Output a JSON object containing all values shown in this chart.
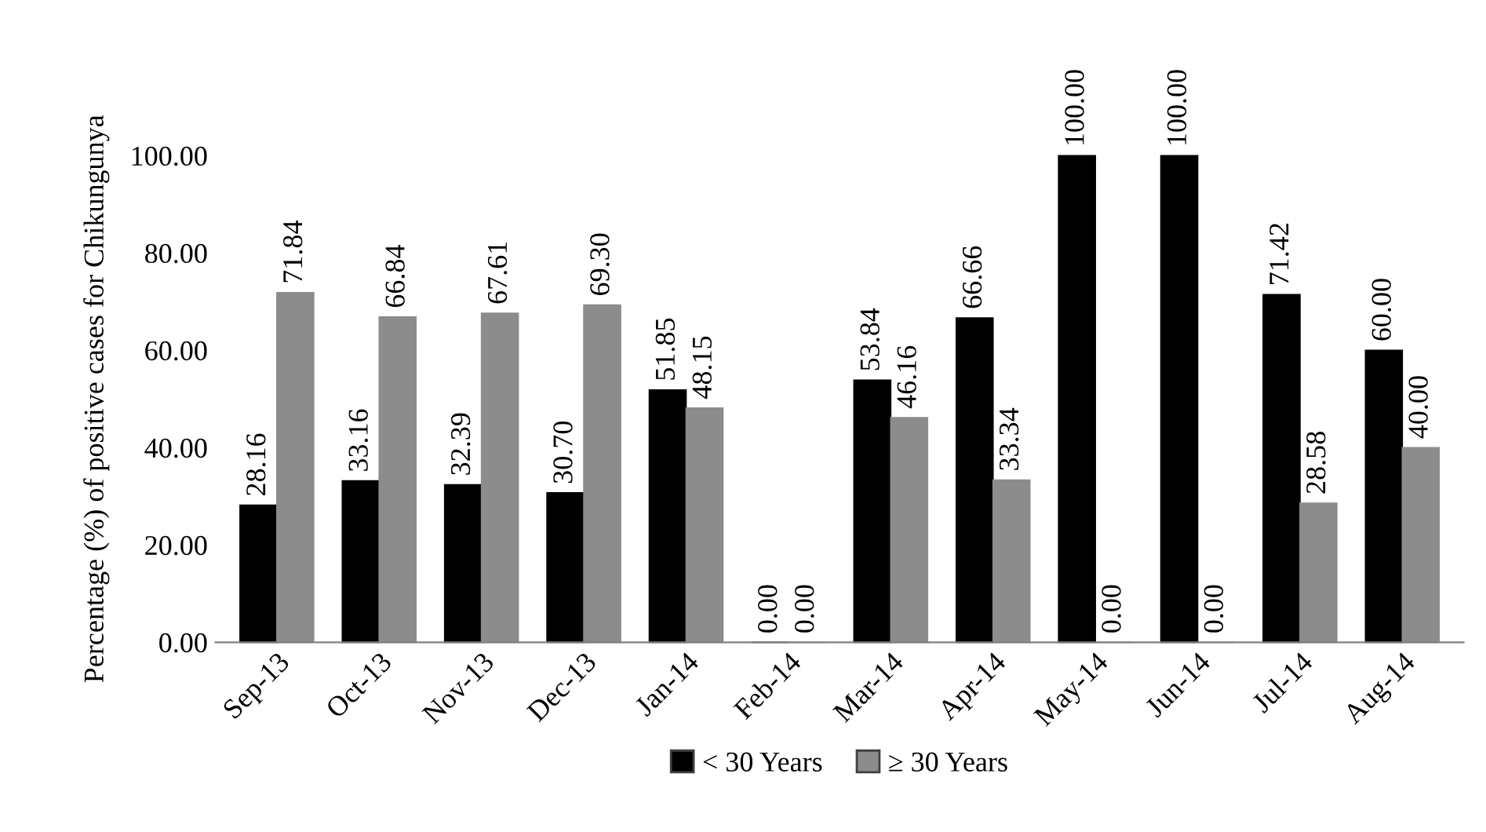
{
  "chart_data": {
    "type": "bar",
    "ylabel": "Percentage (%) of positive cases for Chikungunya",
    "categories": [
      "Sep-13",
      "Oct-13",
      "Nov-13",
      "Dec-13",
      "Jan-14",
      "Feb-14",
      "Mar-14",
      "Apr-14",
      "May-14",
      "Jun-14",
      "Jul-14",
      "Aug-14"
    ],
    "series": [
      {
        "name": "< 30 Years",
        "color": "#000000",
        "values": [
          28.16,
          33.16,
          32.39,
          30.7,
          51.85,
          0.0,
          53.84,
          66.66,
          100.0,
          100.0,
          71.42,
          60.0
        ],
        "value_labels": [
          "28.16",
          "33.16",
          "32.39",
          "30.70",
          "51.85",
          "0.00",
          "53.84",
          "66.66",
          "100.00",
          "100.00",
          "71.42",
          "60.00"
        ]
      },
      {
        "name": "≥ 30 Years",
        "color": "#8c8c8c",
        "values": [
          71.84,
          66.84,
          67.61,
          69.3,
          48.15,
          0.0,
          46.16,
          33.34,
          0.0,
          0.0,
          28.58,
          40.0
        ],
        "value_labels": [
          "71.84",
          "66.84",
          "67.61",
          "69.30",
          "48.15",
          "0.00",
          "46.16",
          "33.34",
          "0.00",
          "0.00",
          "28.58",
          "40.00"
        ]
      }
    ],
    "ylim": [
      0,
      100
    ],
    "yticks": [
      {
        "value": 0,
        "label": "0.00"
      },
      {
        "value": 20,
        "label": "20.00"
      },
      {
        "value": 40,
        "label": "40.00"
      },
      {
        "value": 60,
        "label": "60.00"
      },
      {
        "value": 80,
        "label": "80.00"
      },
      {
        "value": 100,
        "label": "100.00"
      }
    ],
    "grid": false,
    "legend": "bottom"
  }
}
